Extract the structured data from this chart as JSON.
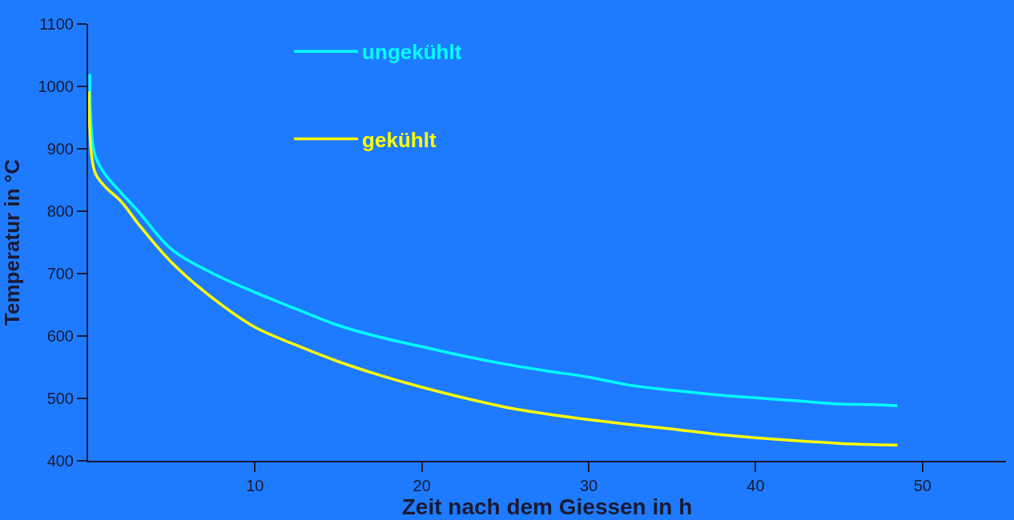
{
  "chart_data": {
    "type": "line",
    "xlabel": "Zeit nach dem Giessen in h",
    "ylabel": "Temperatur in °C",
    "xlim": [
      0,
      55
    ],
    "ylim": [
      400,
      1100
    ],
    "xticks": [
      10,
      20,
      30,
      40,
      50
    ],
    "yticks": [
      400,
      500,
      600,
      700,
      800,
      900,
      1000,
      1100
    ],
    "grid": false,
    "legend": "top",
    "marker": "none",
    "line_style": "solid",
    "series": [
      {
        "name": "ungekühlt",
        "color": "#00ffff",
        "x": [
          0.1,
          0.4,
          1,
          2,
          3,
          5,
          7.5,
          10,
          12.5,
          15,
          17.5,
          20,
          22.5,
          25,
          27.5,
          30,
          32.5,
          35,
          37.5,
          40,
          42.5,
          45,
          47,
          48.5
        ],
        "values": [
          1020,
          891,
          860,
          829,
          800,
          739,
          700,
          670,
          643,
          617,
          598,
          583,
          568,
          555,
          544,
          534,
          521,
          513,
          506,
          501,
          496,
          491,
          490,
          488
        ]
      },
      {
        "name": "gekühlt",
        "color": "#ffff00",
        "x": [
          0.05,
          0.4,
          1,
          2,
          3,
          5,
          7.5,
          10,
          12.5,
          15,
          17.5,
          20,
          22.5,
          25,
          27.5,
          30,
          32.5,
          35,
          37.5,
          40,
          42.5,
          45,
          47,
          48.5
        ],
        "values": [
          992,
          863,
          840,
          815,
          780,
          718,
          660,
          614,
          585,
          559,
          537,
          518,
          501,
          486,
          475,
          466,
          458,
          451,
          443,
          437,
          432,
          428,
          426,
          425
        ]
      }
    ]
  }
}
